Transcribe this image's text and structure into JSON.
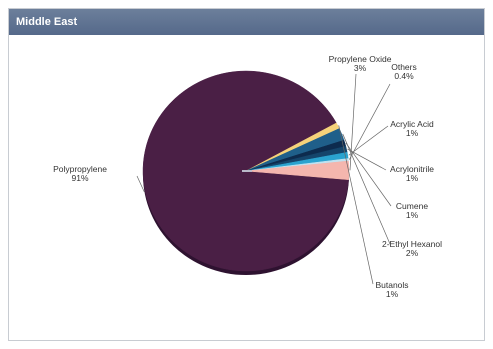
{
  "panel": {
    "title": "Middle East"
  },
  "chart_data": {
    "type": "pie",
    "title": "Middle East",
    "slices": [
      {
        "label": "Polypropylene",
        "pct_label": "91%",
        "value": 91,
        "color": "#4a1f45"
      },
      {
        "label": "Butanols",
        "pct_label": "1%",
        "value": 1,
        "color": "#f5d27a"
      },
      {
        "label": "2-Ethyl Hexanol",
        "pct_label": "2%",
        "value": 2,
        "color": "#1f5f8a"
      },
      {
        "label": "Cumene",
        "pct_label": "1%",
        "value": 1,
        "color": "#0d2b4e"
      },
      {
        "label": "Acrylonitrile",
        "pct_label": "1%",
        "value": 1,
        "color": "#15456b"
      },
      {
        "label": "Acrylic Acid",
        "pct_label": "1%",
        "value": 1,
        "color": "#2aa3cf"
      },
      {
        "label": "Others",
        "pct_label": "0.4%",
        "value": 0.4,
        "color": "#bfe3f2"
      },
      {
        "label": "Propylene Oxide",
        "pct_label": "3%",
        "value": 3,
        "color": "#f4b6ae"
      }
    ]
  }
}
